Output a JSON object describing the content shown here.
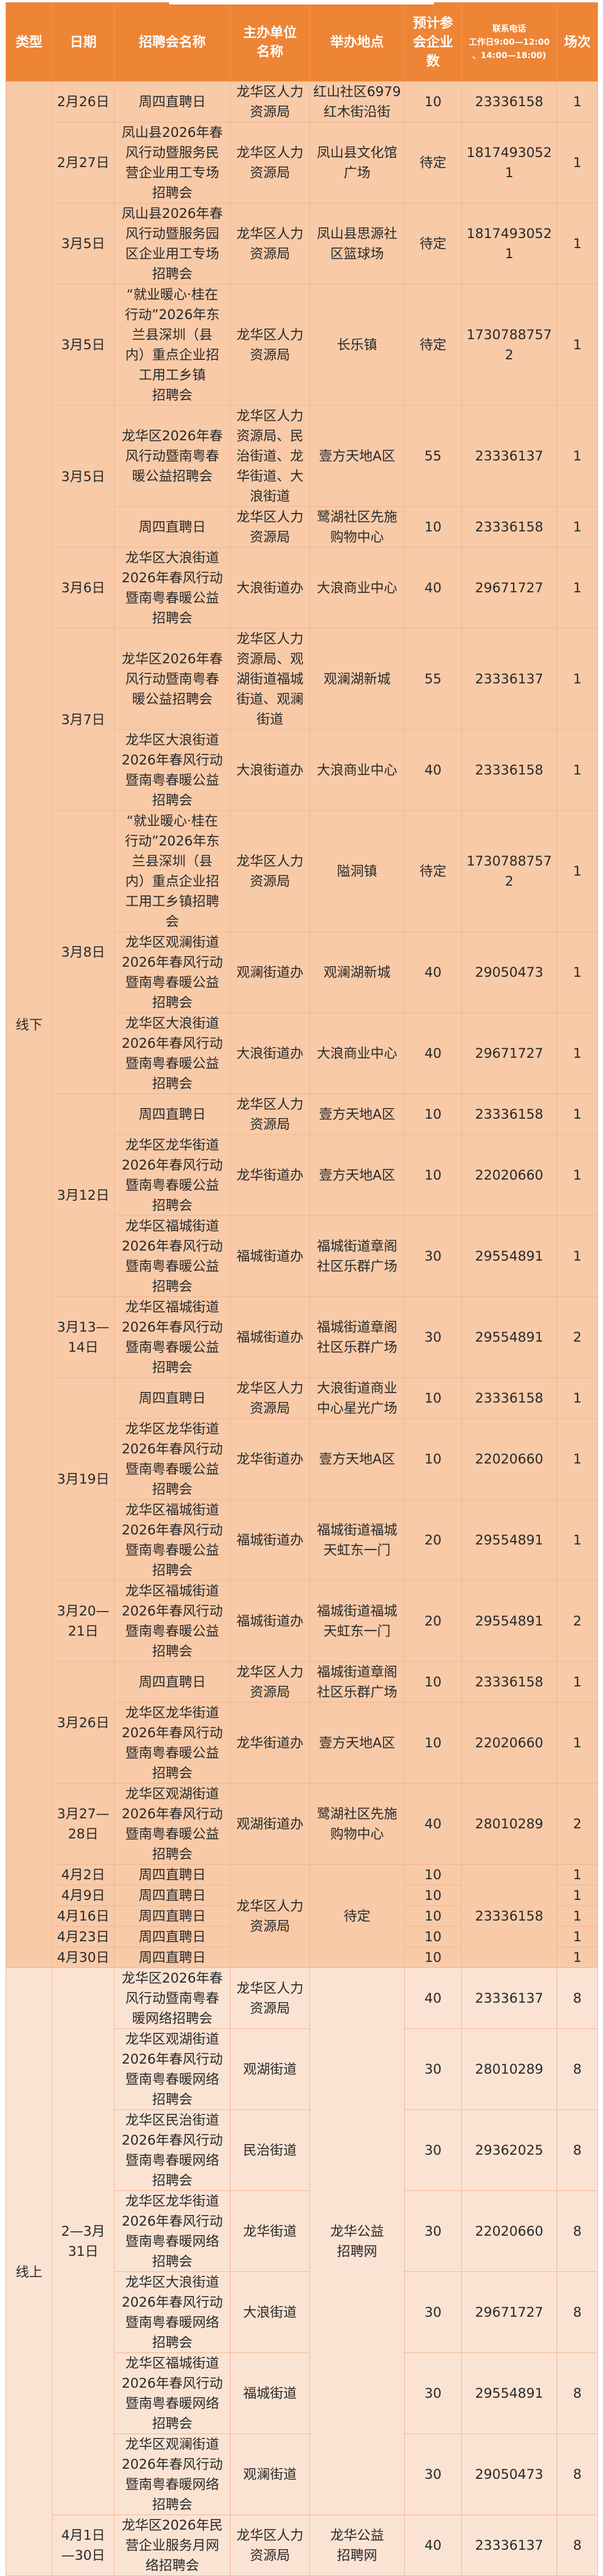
{
  "colors": {
    "header": "#EE8435",
    "offline_row": "#F8CAA8",
    "online_row": "#FBE3D3",
    "border": "#F2B58C"
  },
  "headers": [
    "类型",
    "日期",
    "招聘会名称",
    "主办单位\n名称",
    "举办地点",
    "预计参\n会企业\n数",
    "联系电话\n工作日9:00—12:00\n、14:00—18:00)",
    "场次"
  ],
  "sections": [
    {
      "type": "线下",
      "rows": [
        {
          "date": "2月26日",
          "name": "周四直聘日",
          "host": "龙华区人力\n资源局",
          "venue": "红山社区6979\n红木街沿街",
          "count": "10",
          "phone": "23336158",
          "sessions": "1"
        },
        {
          "date": "2月27日",
          "name": "凤山县2026年春\n风行动暨服务民\n营企业用工专场\n招聘会",
          "host": "龙华区人力\n资源局",
          "venue": "凤山县文化馆\n广场",
          "count": "待定",
          "phone": "18174930521",
          "sessions": "1"
        },
        {
          "date": "3月5日",
          "name": "凤山县2026年春\n风行动暨服务园\n区企业用工专场\n招聘会",
          "host": "龙华区人力\n资源局",
          "venue": "凤山县思源社\n区篮球场",
          "count": "待定",
          "phone": "18174930521",
          "sessions": "1"
        },
        {
          "date": "3月5日",
          "name": "“就业暖心·桂在\n行动”2026年东\n兰县深圳（县\n内）重点企业招\n工用工乡镇\n招聘会",
          "host": "龙华区人力\n资源局",
          "venue": "长乐镇",
          "count": "待定",
          "phone": "17307887572",
          "sessions": "1"
        },
        {
          "date": {
            "text": "3月5日",
            "rowspan": 2
          },
          "name": "龙华区2026年春\n风行动暨南粤春\n暖公益招聘会",
          "host": "龙华区人力\n资源局、民\n治街道、龙\n华街道、大\n浪街道",
          "venue": "壹方天地A区",
          "count": "55",
          "phone": "23336137",
          "sessions": "1"
        },
        {
          "name": "周四直聘日",
          "host": "龙华区人力\n资源局",
          "venue": "鹭湖社区先施\n购物中心",
          "count": "10",
          "phone": "23336158",
          "sessions": "1"
        },
        {
          "date": "3月6日",
          "name": "龙华区大浪街道\n2026年春风行动\n暨南粤春暖公益\n招聘会",
          "host": "大浪街道办",
          "venue": "大浪商业中心",
          "count": "40",
          "phone": "29671727",
          "sessions": "1"
        },
        {
          "date": {
            "text": "3月7日",
            "rowspan": 2
          },
          "name": "龙华区2026年春\n风行动暨南粤春\n暖公益招聘会",
          "host": "龙华区人力\n资源局、观\n湖街道福城\n街道、观澜\n街道",
          "venue": "观澜湖新城",
          "count": "55",
          "phone": "23336137",
          "sessions": "1"
        },
        {
          "name": "龙华区大浪街道\n2026年春风行动\n暨南粤春暖公益\n招聘会",
          "host": "大浪街道办",
          "venue": "大浪商业中心",
          "count": "40",
          "phone": "23336158",
          "sessions": "1"
        },
        {
          "date": {
            "text": "3月8日",
            "rowspan": 3
          },
          "name": "“就业暖心·桂在\n行动”2026年东\n兰县深圳（县\n内）重点企业招\n工用工乡镇招聘\n会",
          "host": "龙华区人力\n资源局",
          "venue": "隘洞镇",
          "count": "待定",
          "phone": "17307887572",
          "sessions": "1"
        },
        {
          "name": "龙华区观澜街道\n2026年春风行动\n暨南粤春暖公益\n招聘会",
          "host": "观澜街道办",
          "venue": "观澜湖新城",
          "count": "40",
          "phone": "29050473",
          "sessions": "1"
        },
        {
          "name": "龙华区大浪街道\n2026年春风行动\n暨南粤春暖公益\n招聘会",
          "host": "大浪街道办",
          "venue": "大浪商业中心",
          "count": "40",
          "phone": "29671727",
          "sessions": "1"
        },
        {
          "date": {
            "text": "3月12日",
            "rowspan": 3
          },
          "name": "周四直聘日",
          "host": "龙华区人力\n资源局",
          "venue": "壹方天地A区",
          "count": "10",
          "phone": "23336158",
          "sessions": "1"
        },
        {
          "name": "龙华区龙华街道\n2026年春风行动\n暨南粤春暖公益\n招聘会",
          "host": "龙华街道办",
          "venue": "壹方天地A区",
          "count": "10",
          "phone": "22020660",
          "sessions": "1"
        },
        {
          "name": "龙华区福城街道\n2026年春风行动\n暨南粤春暖公益\n招聘会",
          "host": "福城街道办",
          "venue": "福城街道章阁\n社区乐群广场",
          "count": "30",
          "phone": "29554891",
          "sessions": "1"
        },
        {
          "date": "3月13—\n14日",
          "name": "龙华区福城街道\n2026年春风行动\n暨南粤春暖公益\n招聘会",
          "host": "福城街道办",
          "venue": "福城街道章阁\n社区乐群广场",
          "count": "30",
          "phone": "29554891",
          "sessions": "2"
        },
        {
          "date": {
            "text": "3月19日",
            "rowspan": 3
          },
          "name": "周四直聘日",
          "host": "龙华区人力\n资源局",
          "venue": "大浪街道商业\n中心星光广场",
          "count": "10",
          "phone": "23336158",
          "sessions": "1"
        },
        {
          "name": "龙华区龙华街道\n2026年春风行动\n暨南粤春暖公益\n招聘会",
          "host": "龙华街道办",
          "venue": "壹方天地A区",
          "count": "10",
          "phone": "22020660",
          "sessions": "1"
        },
        {
          "name": "龙华区福城街道\n2026年春风行动\n暨南粤春暖公益\n招聘会",
          "host": "福城街道办",
          "venue": "福城街道福城\n天虹东一门",
          "count": "20",
          "phone": "29554891",
          "sessions": "1"
        },
        {
          "date": "3月20—\n21日",
          "name": "龙华区福城街道\n2026年春风行动\n暨南粤春暖公益\n招聘会",
          "host": "福城街道办",
          "venue": "福城街道福城\n天虹东一门",
          "count": "20",
          "phone": "29554891",
          "sessions": "2"
        },
        {
          "date": {
            "text": "3月26日",
            "rowspan": 2
          },
          "name": "周四直聘日",
          "host": "龙华区人力\n资源局",
          "venue": "福城街道章阁\n社区乐群广场",
          "count": "10",
          "phone": "23336158",
          "sessions": "1"
        },
        {
          "name": "龙华区龙华街道\n2026年春风行动\n暨南粤春暖公益\n招聘会",
          "host": "龙华街道办",
          "venue": "壹方天地A区",
          "count": "10",
          "phone": "22020660",
          "sessions": "1"
        },
        {
          "date": "3月27—\n28日",
          "name": "龙华区观湖街道\n2026年春风行动\n暨南粤春暖公益\n招聘会",
          "host": "观湖街道办",
          "venue": "鹭湖社区先施\n购物中心",
          "count": "40",
          "phone": "28010289",
          "sessions": "2"
        },
        {
          "date": "4月2日",
          "name": "周四直聘日",
          "host": {
            "text": "龙华区人力\n资源局",
            "rowspan": 5
          },
          "venue": {
            "text": "待定",
            "rowspan": 5
          },
          "count": "10",
          "phone": {
            "text": "23336158",
            "rowspan": 5
          },
          "sessions": "1"
        },
        {
          "date": "4月9日",
          "name": "周四直聘日",
          "count": "10",
          "sessions": "1"
        },
        {
          "date": "4月16日",
          "name": "周四直聘日",
          "count": "10",
          "sessions": "1"
        },
        {
          "date": "4月23日",
          "name": "周四直聘日",
          "count": "10",
          "sessions": "1"
        },
        {
          "date": "4月30日",
          "name": "周四直聘日",
          "count": "10",
          "sessions": "1"
        }
      ]
    },
    {
      "type": "线上",
      "rows": [
        {
          "date": {
            "text": "2—3月\n31日",
            "rowspan": 7
          },
          "name": "龙华区2026年春\n风行动暨南粤春\n暖网络招聘会",
          "host": "龙华区人力\n资源局",
          "venue": {
            "text": "龙华公益\n招聘网",
            "rowspan": 7
          },
          "count": "40",
          "phone": "23336137",
          "sessions": "8"
        },
        {
          "name": "龙华区观湖街道\n2026年春风行动\n暨南粤春暖网络\n招聘会",
          "host": "观湖街道",
          "count": "30",
          "phone": "28010289",
          "sessions": "8"
        },
        {
          "name": "龙华区民治街道\n2026年春风行动\n暨南粤春暖网络\n招聘会",
          "host": "民治街道",
          "count": "30",
          "phone": "29362025",
          "sessions": "8"
        },
        {
          "name": "龙华区龙华街道\n2026年春风行动\n暨南粤春暖网络\n招聘会",
          "host": "龙华街道",
          "count": "30",
          "phone": "22020660",
          "sessions": "8"
        },
        {
          "name": "龙华区大浪街道\n2026年春风行动\n暨南粤春暖网络\n招聘会",
          "host": "大浪街道",
          "count": "30",
          "phone": "29671727",
          "sessions": "8"
        },
        {
          "name": "龙华区福城街道\n2026年春风行动\n暨南粤春暖网络\n招聘会",
          "host": "福城街道",
          "count": "30",
          "phone": "29554891",
          "sessions": "8"
        },
        {
          "name": "龙华区观澜街道\n2026年春风行动\n暨南粤春暖网络\n招聘会",
          "host": "观澜街道",
          "count": "30",
          "phone": "29050473",
          "sessions": "8"
        },
        {
          "date": "4月1日\n—30日",
          "name": "龙华区2026年民\n营企业服务月网\n络招聘会",
          "host": "龙华区人力\n资源局",
          "venue": "龙华公益\n招聘网",
          "count": "40",
          "phone": "23336137",
          "sessions": "8"
        }
      ]
    }
  ]
}
